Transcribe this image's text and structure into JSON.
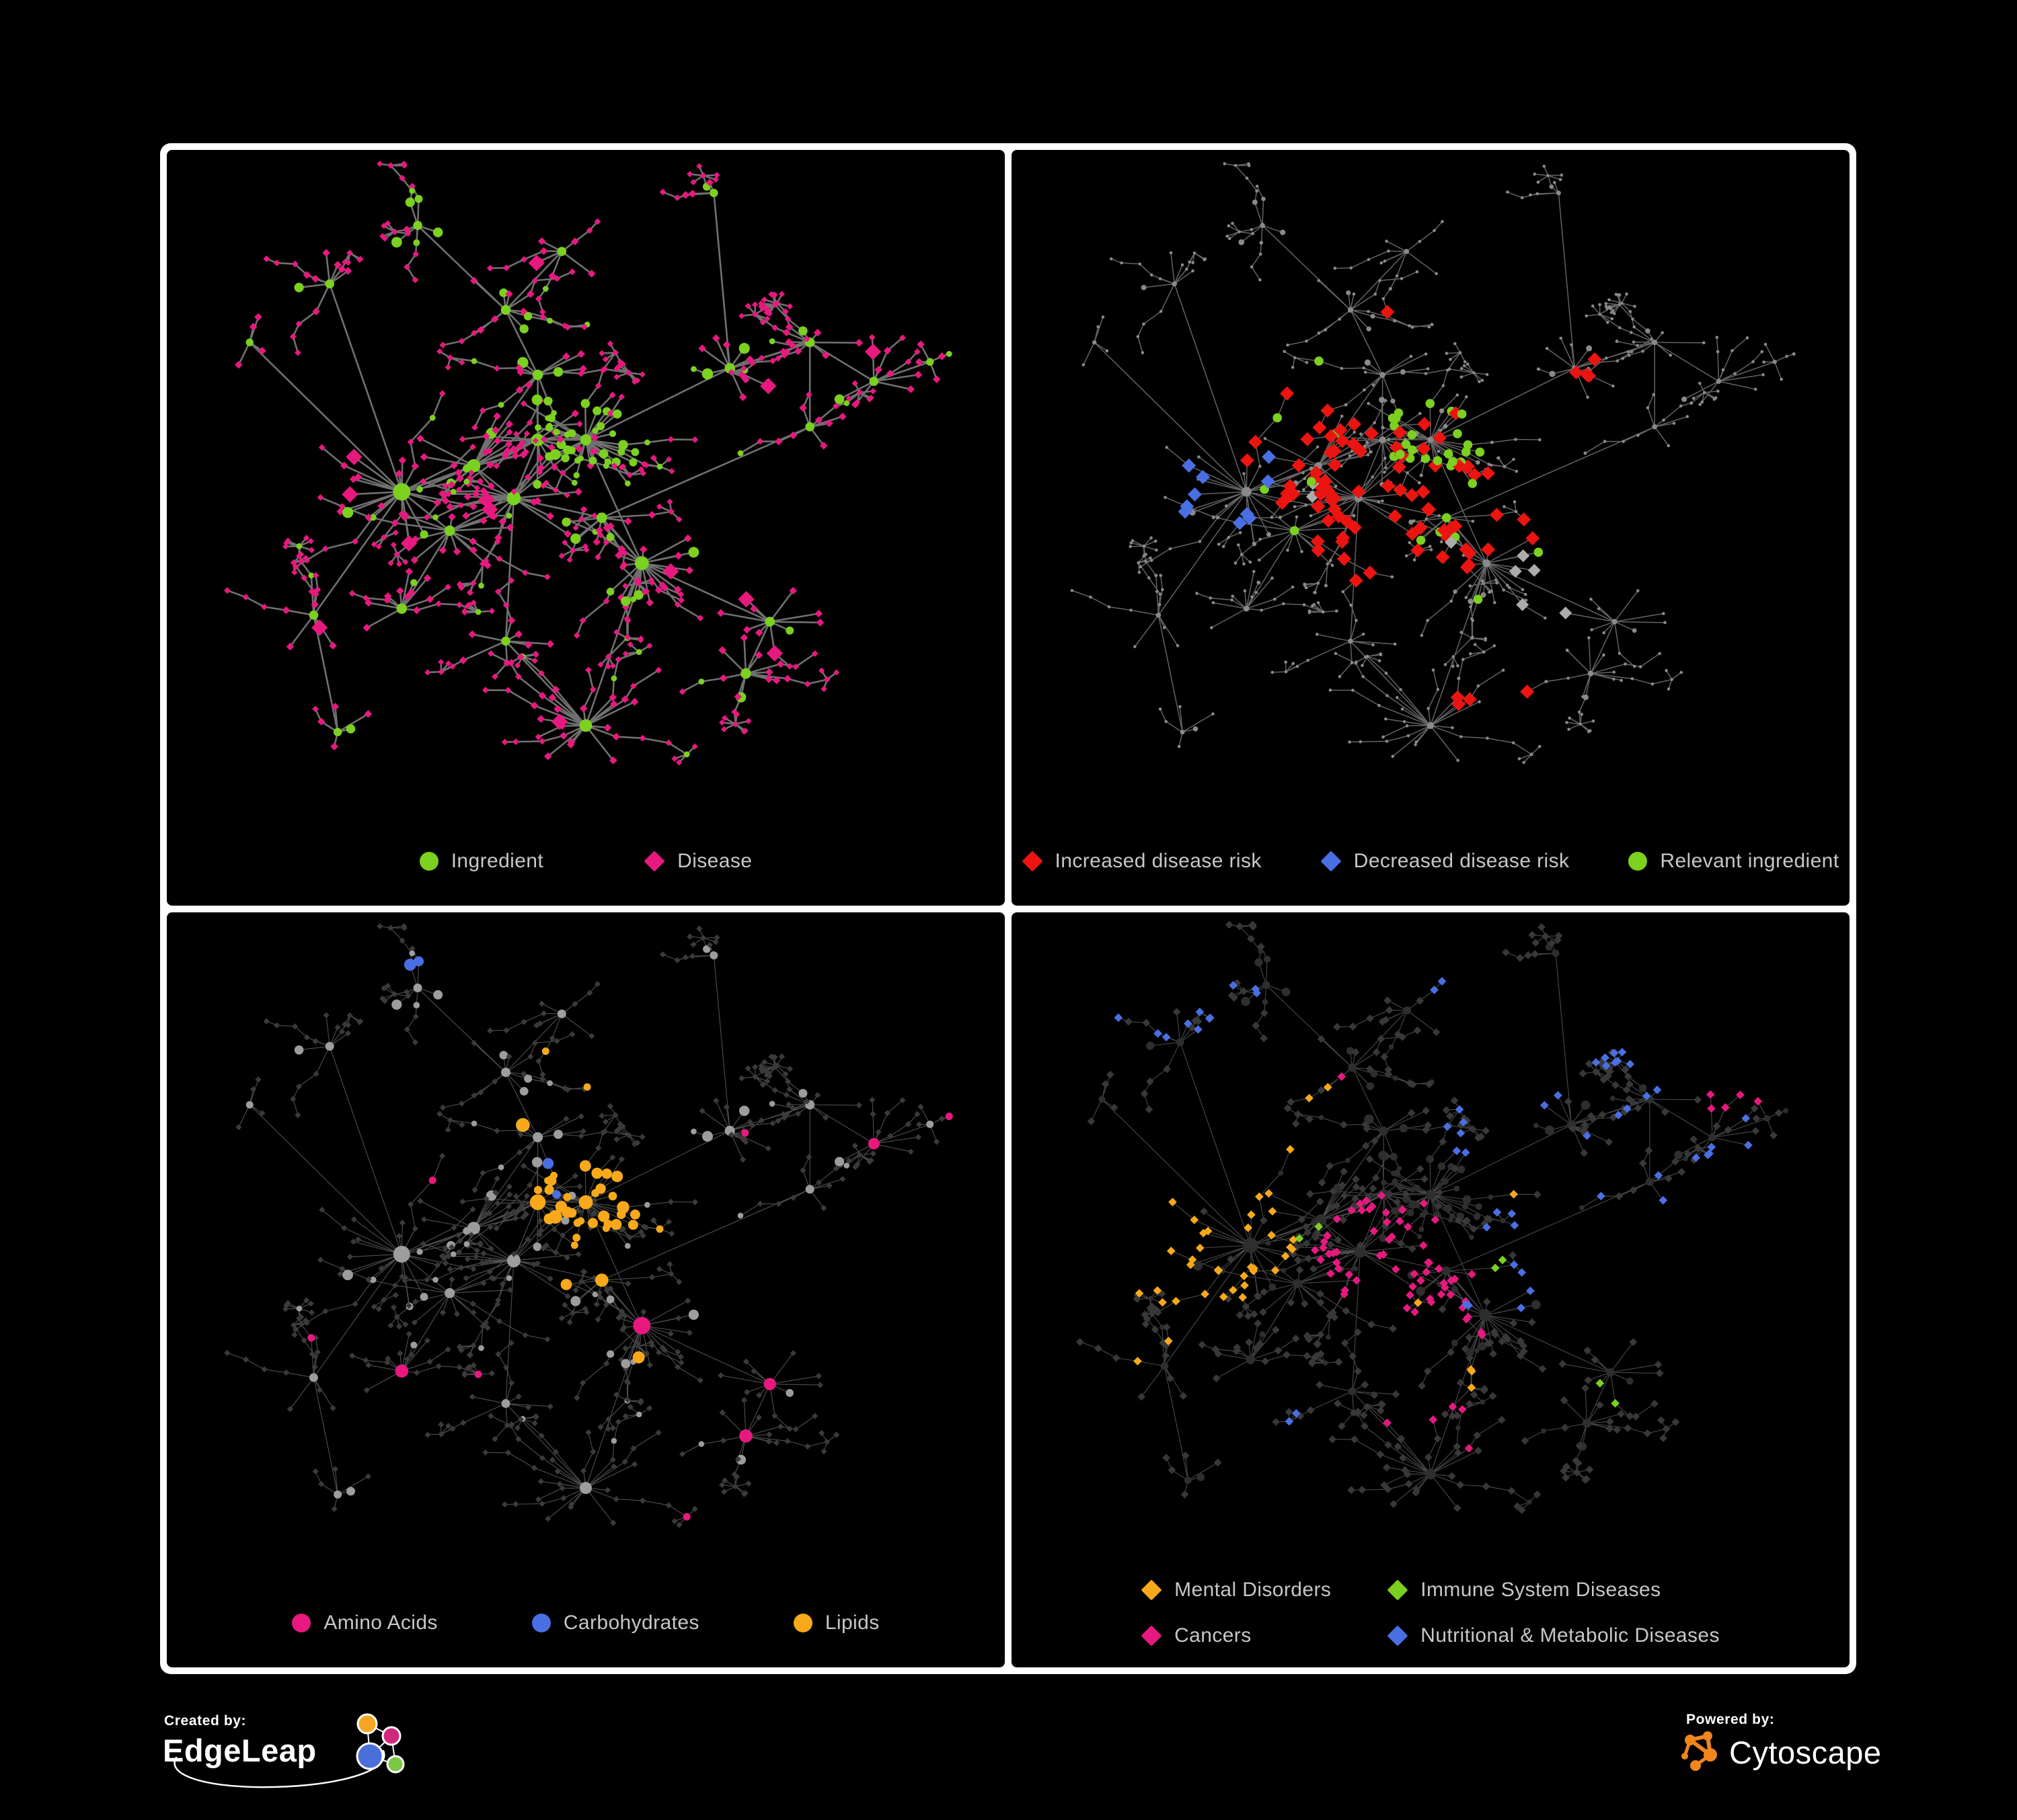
{
  "page": {
    "background": "#000000",
    "frame_color": "#FFFFFF",
    "legend_text_color": "#C7C7C7"
  },
  "branding": {
    "created_by": {
      "label": "Created by:",
      "name": "EdgeLeap",
      "logo_colors": {
        "orange": "#F5A623",
        "magenta": "#D2277E",
        "blue": "#4A6FD8",
        "green": "#7AC943",
        "line": "#FFFFFF"
      }
    },
    "powered_by": {
      "label": "Powered by:",
      "name": "Cytoscape",
      "logo_color": "#F0861C"
    }
  },
  "network": {
    "seed": 20,
    "chain_prob": 0.3,
    "hubs": [
      [
        0.27,
        0.51,
        24,
        0.075,
        0.82,
        2.5
      ],
      [
        0.36,
        0.47,
        18,
        0.07,
        0.85,
        1.9
      ],
      [
        0.41,
        0.52,
        20,
        0.07,
        0.85,
        2.0
      ],
      [
        0.44,
        0.43,
        16,
        0.06,
        0.8,
        1.8
      ],
      [
        0.33,
        0.57,
        14,
        0.06,
        0.9,
        1.5
      ],
      [
        0.5,
        0.43,
        30,
        0.055,
        0.12,
        1.6
      ],
      [
        0.57,
        0.62,
        22,
        0.06,
        0.95,
        2.0
      ],
      [
        0.5,
        0.87,
        20,
        0.06,
        1.0,
        1.8
      ],
      [
        0.27,
        0.69,
        12,
        0.05,
        0.95,
        1.5
      ],
      [
        0.18,
        0.19,
        8,
        0.05,
        0.9,
        1.3
      ],
      [
        0.4,
        0.23,
        9,
        0.05,
        0.75,
        1.4
      ],
      [
        0.47,
        0.14,
        7,
        0.045,
        0.85,
        1.3
      ],
      [
        0.29,
        0.1,
        6,
        0.04,
        0.5,
        1.3
      ],
      [
        0.68,
        0.32,
        11,
        0.05,
        0.9,
        1.5
      ],
      [
        0.78,
        0.28,
        10,
        0.05,
        0.9,
        1.4
      ],
      [
        0.86,
        0.34,
        8,
        0.045,
        0.9,
        1.3
      ],
      [
        0.78,
        0.41,
        7,
        0.045,
        0.9,
        1.3
      ],
      [
        0.7,
        0.79,
        12,
        0.05,
        0.9,
        1.5
      ],
      [
        0.73,
        0.71,
        10,
        0.05,
        0.9,
        1.4
      ],
      [
        0.16,
        0.7,
        7,
        0.05,
        0.9,
        1.3
      ],
      [
        0.19,
        0.88,
        5,
        0.04,
        0.9,
        1.2
      ],
      [
        0.52,
        0.55,
        10,
        0.05,
        0.8,
        1.5
      ],
      [
        0.66,
        0.05,
        4,
        0.035,
        0.6,
        1.2
      ],
      [
        0.08,
        0.28,
        4,
        0.035,
        0.9,
        1.1
      ],
      [
        0.44,
        0.33,
        10,
        0.055,
        0.7,
        1.5
      ],
      [
        0.4,
        0.74,
        8,
        0.05,
        0.95,
        1.3
      ],
      [
        0.93,
        0.31,
        4,
        0.03,
        0.9,
        1.1
      ]
    ],
    "links": [
      [
        0,
        1
      ],
      [
        0,
        4
      ],
      [
        1,
        2
      ],
      [
        1,
        3
      ],
      [
        2,
        3
      ],
      [
        2,
        21
      ],
      [
        3,
        5
      ],
      [
        2,
        5
      ],
      [
        4,
        8
      ],
      [
        21,
        6
      ],
      [
        6,
        18
      ],
      [
        18,
        17
      ],
      [
        2,
        25
      ],
      [
        25,
        7
      ],
      [
        0,
        9
      ],
      [
        3,
        24
      ],
      [
        24,
        10
      ],
      [
        10,
        11
      ],
      [
        10,
        12
      ],
      [
        5,
        13
      ],
      [
        13,
        14
      ],
      [
        14,
        15
      ],
      [
        14,
        16
      ],
      [
        13,
        22
      ],
      [
        15,
        26
      ],
      [
        0,
        19
      ],
      [
        19,
        20
      ],
      [
        0,
        23
      ],
      [
        5,
        6
      ],
      [
        21,
        16
      ],
      [
        1,
        24
      ],
      [
        6,
        7
      ]
    ]
  },
  "panels": [
    {
      "id": "ingredient-disease",
      "legend_layout": "row",
      "legend": [
        {
          "shape": "circle",
          "color": "#7CD01F",
          "label": "Ingredient"
        },
        {
          "shape": "diamond",
          "color": "#E7197F",
          "label": "Disease"
        }
      ],
      "style": {
        "edge": {
          "color": "#767676",
          "width": 2.6,
          "opacity": 0.95
        },
        "ing": {
          "shape": "circle",
          "color": "#7CD01F",
          "r": 5.2,
          "scale": true
        },
        "dis": {
          "shape": "diamond",
          "color": "#E7197F",
          "r": 5.8,
          "scale": true
        },
        "categories": []
      }
    },
    {
      "id": "disease-risk",
      "legend_layout": "row",
      "legend": [
        {
          "shape": "diamond",
          "color": "#EC1410",
          "label": "Increased disease risk"
        },
        {
          "shape": "diamond",
          "color": "#4A6FE3",
          "label": "Decreased disease risk"
        },
        {
          "shape": "circle",
          "color": "#7CD01F",
          "label": "Relevant ingredient"
        }
      ],
      "style": {
        "edge": {
          "color": "#6E6E6E",
          "width": 1.5,
          "opacity": 0.9
        },
        "ing": {
          "shape": "circle",
          "color": "#8A8A8A",
          "r": 2.9,
          "scale": true
        },
        "dis": {
          "shape": "circle",
          "color": "#8A8A8A",
          "r": 2.3,
          "scale": false
        },
        "categories": [
          {
            "kind": "dis",
            "shape": "diamond",
            "color": "#EC1410",
            "r": 10.5,
            "scale": false,
            "zones": [
              [
                0.42,
                0.47,
                0.15,
                0.5
              ],
              [
                0.55,
                0.56,
                0.09,
                0.4
              ],
              [
                0.3,
                0.4,
                0.05,
                0.55
              ],
              [
                0.58,
                0.84,
                0.05,
                0.7
              ],
              [
                0.1,
                0.4,
                0.035,
                0.9
              ],
              [
                0.44,
                0.24,
                0.035,
                0.5
              ],
              [
                0.68,
                0.33,
                0.035,
                0.45
              ],
              [
                0.42,
                0.63,
                0.04,
                0.5
              ]
            ]
          },
          {
            "kind": "dis",
            "shape": "diamond",
            "color": "#4A6FE3",
            "r": 10.5,
            "scale": false,
            "zones": [
              [
                0.25,
                0.5,
                0.07,
                0.55
              ],
              [
                0.9,
                0.4,
                0.035,
                1.0
              ]
            ]
          },
          {
            "kind": "dis",
            "shape": "diamond",
            "color": "#ACACAC",
            "r": 9.5,
            "scale": false,
            "zones": [
              [
                0.33,
                0.46,
                0.12,
                0.1
              ],
              [
                0.5,
                0.6,
                0.15,
                0.06
              ],
              [
                0.17,
                0.38,
                0.04,
                0.5
              ],
              [
                0.63,
                0.67,
                0.05,
                0.3
              ]
            ]
          },
          {
            "kind": "ing",
            "shape": "circle",
            "color": "#7CD01F",
            "r": 6.8,
            "scale": false,
            "zones": [
              [
                0.43,
                0.45,
                0.22,
                0.32
              ],
              [
                0.22,
                0.4,
                0.1,
                0.3
              ],
              [
                0.6,
                0.62,
                0.12,
                0.2
              ],
              [
                0.5,
                0.43,
                0.06,
                0.5
              ],
              [
                0.64,
                0.12,
                0.04,
                0.5
              ]
            ]
          }
        ]
      }
    },
    {
      "id": "nutrient-classes",
      "legend_layout": "row",
      "legend": [
        {
          "shape": "circle",
          "color": "#E7197F",
          "label": "Amino Acids"
        },
        {
          "shape": "circle",
          "color": "#4A6FE3",
          "label": "Carbohydrates"
        },
        {
          "shape": "circle",
          "color": "#F7A91B",
          "label": "Lipids"
        }
      ],
      "style": {
        "edge": {
          "color": "#8F8F8F",
          "width": 1.1,
          "opacity": 0.55
        },
        "ing": {
          "shape": "circle",
          "color": "#9D9D9D",
          "r": 5.0,
          "scale": true
        },
        "dis": {
          "shape": "diamond",
          "color": "#3A3A3A",
          "r": 4.6,
          "scale": false
        },
        "categories": [
          {
            "kind": "ing",
            "shape": "circle",
            "color": "#F7A91B",
            "r": 6.5,
            "scale": true,
            "zones": [
              [
                0.5,
                0.43,
                0.075,
                0.9
              ],
              [
                0.44,
                0.4,
                0.13,
                0.3
              ],
              [
                0.45,
                0.2,
                0.12,
                0.3
              ],
              [
                0.55,
                0.6,
                0.14,
                0.25
              ],
              [
                0.3,
                0.3,
                0.1,
                0.1
              ],
              [
                0.75,
                0.45,
                0.2,
                0.08
              ],
              [
                0.85,
                0.7,
                0.06,
                0.3
              ],
              [
                0.5,
                0.87,
                0.04,
                0.3
              ]
            ]
          },
          {
            "kind": "ing",
            "shape": "circle",
            "color": "#4A6FE3",
            "r": 6.5,
            "scale": true,
            "zones": [
              [
                0.5,
                0.43,
                0.08,
                0.3
              ],
              [
                0.04,
                0.26,
                0.03,
                0.9
              ],
              [
                0.66,
                0.8,
                0.04,
                0.5
              ],
              [
                0.41,
                0.25,
                0.04,
                0.3
              ],
              [
                0.28,
                0.06,
                0.03,
                0.6
              ],
              [
                0.35,
                0.5,
                0.1,
                0.05
              ]
            ]
          },
          {
            "kind": "ing",
            "shape": "circle",
            "color": "#E7197F",
            "r": 6.5,
            "scale": true,
            "zones": [
              [
                0.3,
                0.78,
                0.12,
                0.25
              ],
              [
                0.6,
                0.78,
                0.14,
                0.18
              ],
              [
                0.7,
                0.62,
                0.1,
                0.2
              ],
              [
                0.07,
                0.5,
                0.05,
                0.4
              ],
              [
                0.9,
                0.33,
                0.07,
                0.3
              ],
              [
                0.2,
                0.2,
                0.12,
                0.12
              ],
              [
                0.5,
                0.5,
                1.0,
                0.035
              ]
            ]
          }
        ]
      }
    },
    {
      "id": "disease-classes",
      "legend_layout": "grid",
      "legend": [
        {
          "shape": "diamond",
          "color": "#F7A91B",
          "label": "Mental Disorders"
        },
        {
          "shape": "diamond",
          "color": "#7CD01F",
          "label": "Immune System Diseases"
        },
        {
          "shape": "diamond",
          "color": "#E7197F",
          "label": "Cancers"
        },
        {
          "shape": "diamond",
          "color": "#4A6FE3",
          "label": "Nutritional & Metabolic Diseases"
        }
      ],
      "style": {
        "edge": {
          "color": "#939393",
          "width": 1.1,
          "opacity": 0.5
        },
        "ing": {
          "shape": "circle",
          "color": "#2E2E2E",
          "r": 4.6,
          "scale": true
        },
        "dis": {
          "shape": "diamond",
          "color": "#383838",
          "r": 6.0,
          "scale": false
        },
        "categories": [
          {
            "kind": "dis",
            "shape": "diamond",
            "color": "#F7A91B",
            "r": 6.5,
            "scale": false,
            "zones": [
              [
                0.2,
                0.48,
                0.13,
                0.9
              ],
              [
                0.27,
                0.36,
                0.07,
                0.5
              ],
              [
                0.38,
                0.28,
                0.06,
                0.3
              ],
              [
                0.15,
                0.68,
                0.04,
                0.4
              ],
              [
                0.48,
                0.64,
                0.04,
                0.3
              ],
              [
                0.62,
                0.42,
                0.03,
                0.5
              ],
              [
                0.55,
                0.72,
                0.03,
                0.4
              ]
            ]
          },
          {
            "kind": "dis",
            "shape": "diamond",
            "color": "#E7197F",
            "r": 6.5,
            "scale": false,
            "zones": [
              [
                0.45,
                0.53,
                0.1,
                0.7
              ],
              [
                0.52,
                0.6,
                0.07,
                0.5
              ],
              [
                0.88,
                0.26,
                0.06,
                0.8
              ],
              [
                0.5,
                0.8,
                0.06,
                0.4
              ],
              [
                0.4,
                0.27,
                0.03,
                0.5
              ],
              [
                0.3,
                0.72,
                0.04,
                0.3
              ],
              [
                0.76,
                0.6,
                0.03,
                0.4
              ]
            ]
          },
          {
            "kind": "dis",
            "shape": "diamond",
            "color": "#7CD01F",
            "r": 6.5,
            "scale": false,
            "zones": [
              [
                0.4,
                0.26,
                0.025,
                0.8
              ],
              [
                0.33,
                0.47,
                0.03,
                0.4
              ],
              [
                0.57,
                0.54,
                0.025,
                0.6
              ],
              [
                0.25,
                0.71,
                0.025,
                0.5
              ],
              [
                0.73,
                0.74,
                0.025,
                0.6
              ],
              [
                0.49,
                0.81,
                0.025,
                0.5
              ],
              [
                0.29,
                0.32,
                0.02,
                0.5
              ]
            ]
          },
          {
            "kind": "dis",
            "shape": "diamond",
            "color": "#4A6FE3",
            "r": 6.5,
            "scale": false,
            "zones": [
              [
                0.57,
                0.58,
                0.06,
                0.7
              ],
              [
                0.62,
                0.47,
                0.05,
                0.5
              ],
              [
                0.16,
                0.17,
                0.08,
                0.5
              ],
              [
                0.48,
                0.1,
                0.05,
                0.5
              ],
              [
                0.78,
                0.3,
                0.15,
                0.3
              ],
              [
                0.9,
                0.13,
                0.06,
                0.4
              ],
              [
                0.67,
                0.52,
                0.03,
                0.6
              ],
              [
                0.3,
                0.8,
                0.08,
                0.25
              ],
              [
                0.38,
                0.6,
                0.05,
                0.2
              ],
              [
                0.52,
                0.3,
                0.08,
                0.15
              ],
              [
                0.85,
                0.55,
                0.06,
                0.3
              ],
              [
                0.25,
                0.12,
                0.05,
                0.3
              ]
            ]
          }
        ]
      }
    }
  ]
}
